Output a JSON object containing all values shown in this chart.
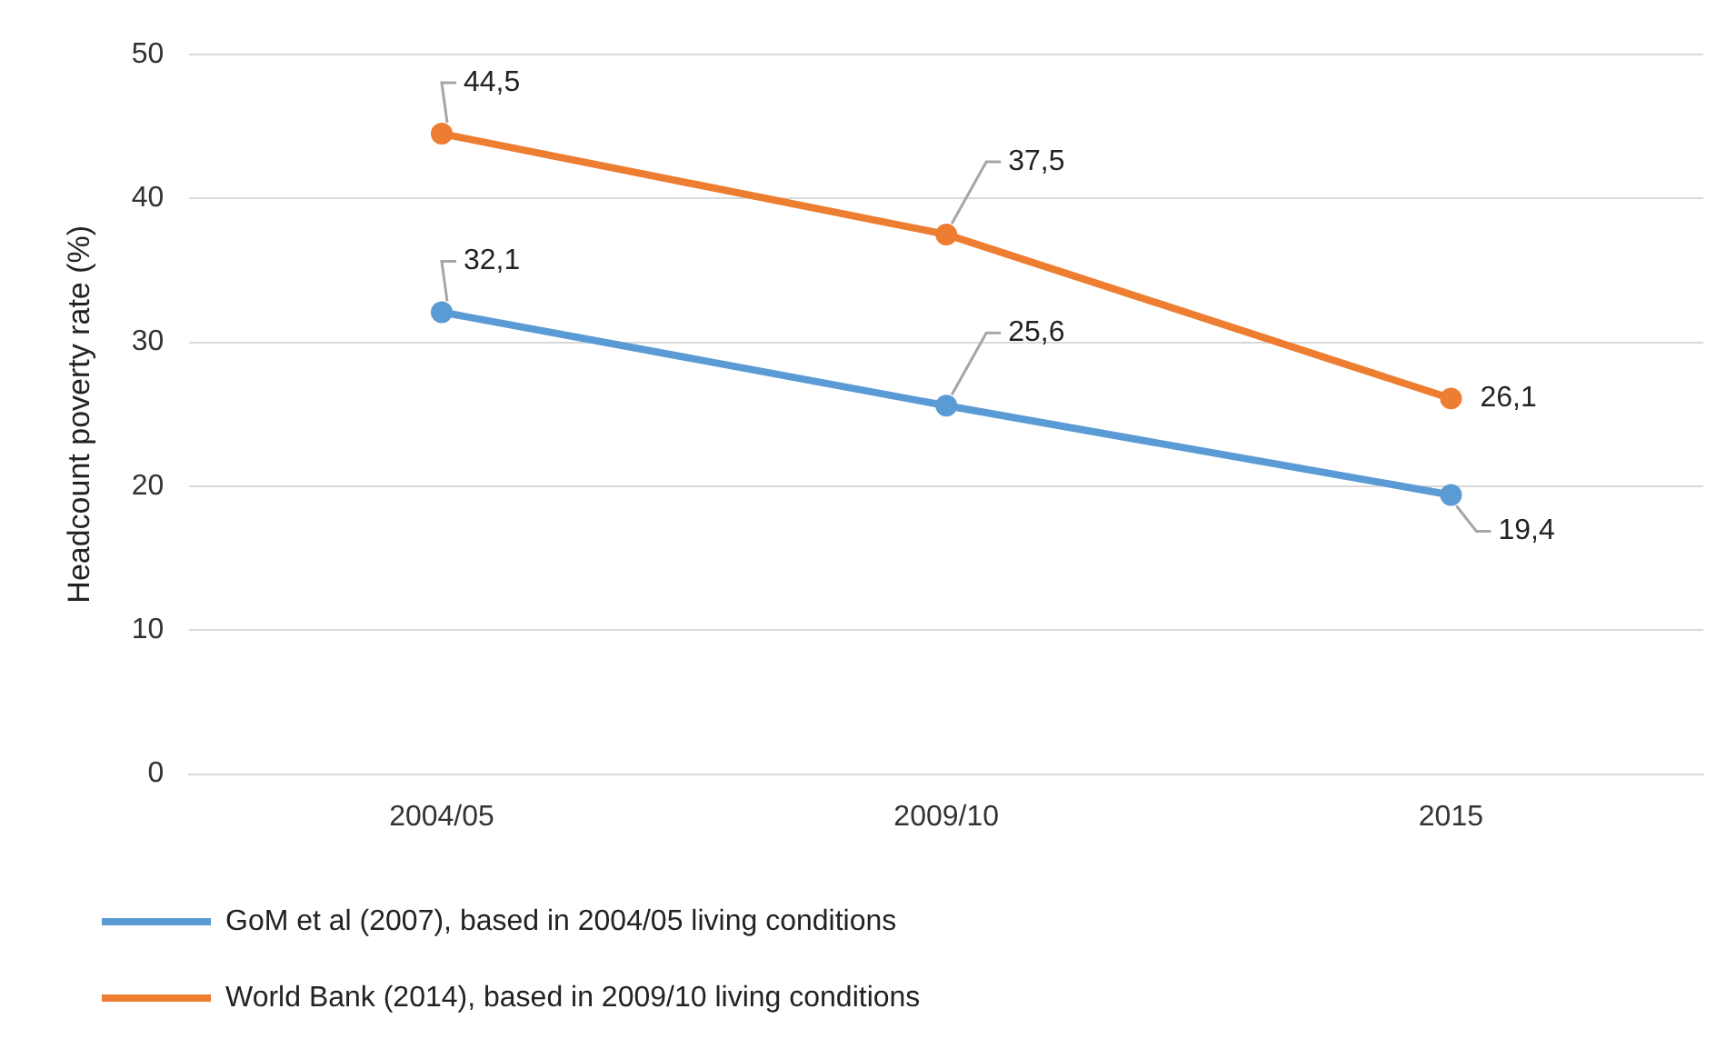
{
  "chart_data": {
    "type": "line",
    "ylabel": "Headcount poverty rate (%)",
    "categories": [
      "2004/05",
      "2009/10",
      "2015"
    ],
    "series": [
      {
        "name": "GoM et al (2007), based in 2004/05 living conditions",
        "color": "#5b9bd5",
        "values": [
          32.1,
          25.6,
          19.4
        ],
        "value_labels": [
          "32,1",
          "25,6",
          "19,4"
        ]
      },
      {
        "name": "World Bank (2014), based in 2009/10 living conditions",
        "color": "#ed7d31",
        "values": [
          44.5,
          37.5,
          26.1
        ],
        "value_labels": [
          "44,5",
          "37,5",
          "26,1"
        ]
      }
    ],
    "ylim": [
      0,
      50
    ],
    "yticks": [
      0,
      10,
      20,
      30,
      40,
      50
    ],
    "grid": "y",
    "legend": "bottom",
    "marker": "circle",
    "line_style": "solid"
  }
}
